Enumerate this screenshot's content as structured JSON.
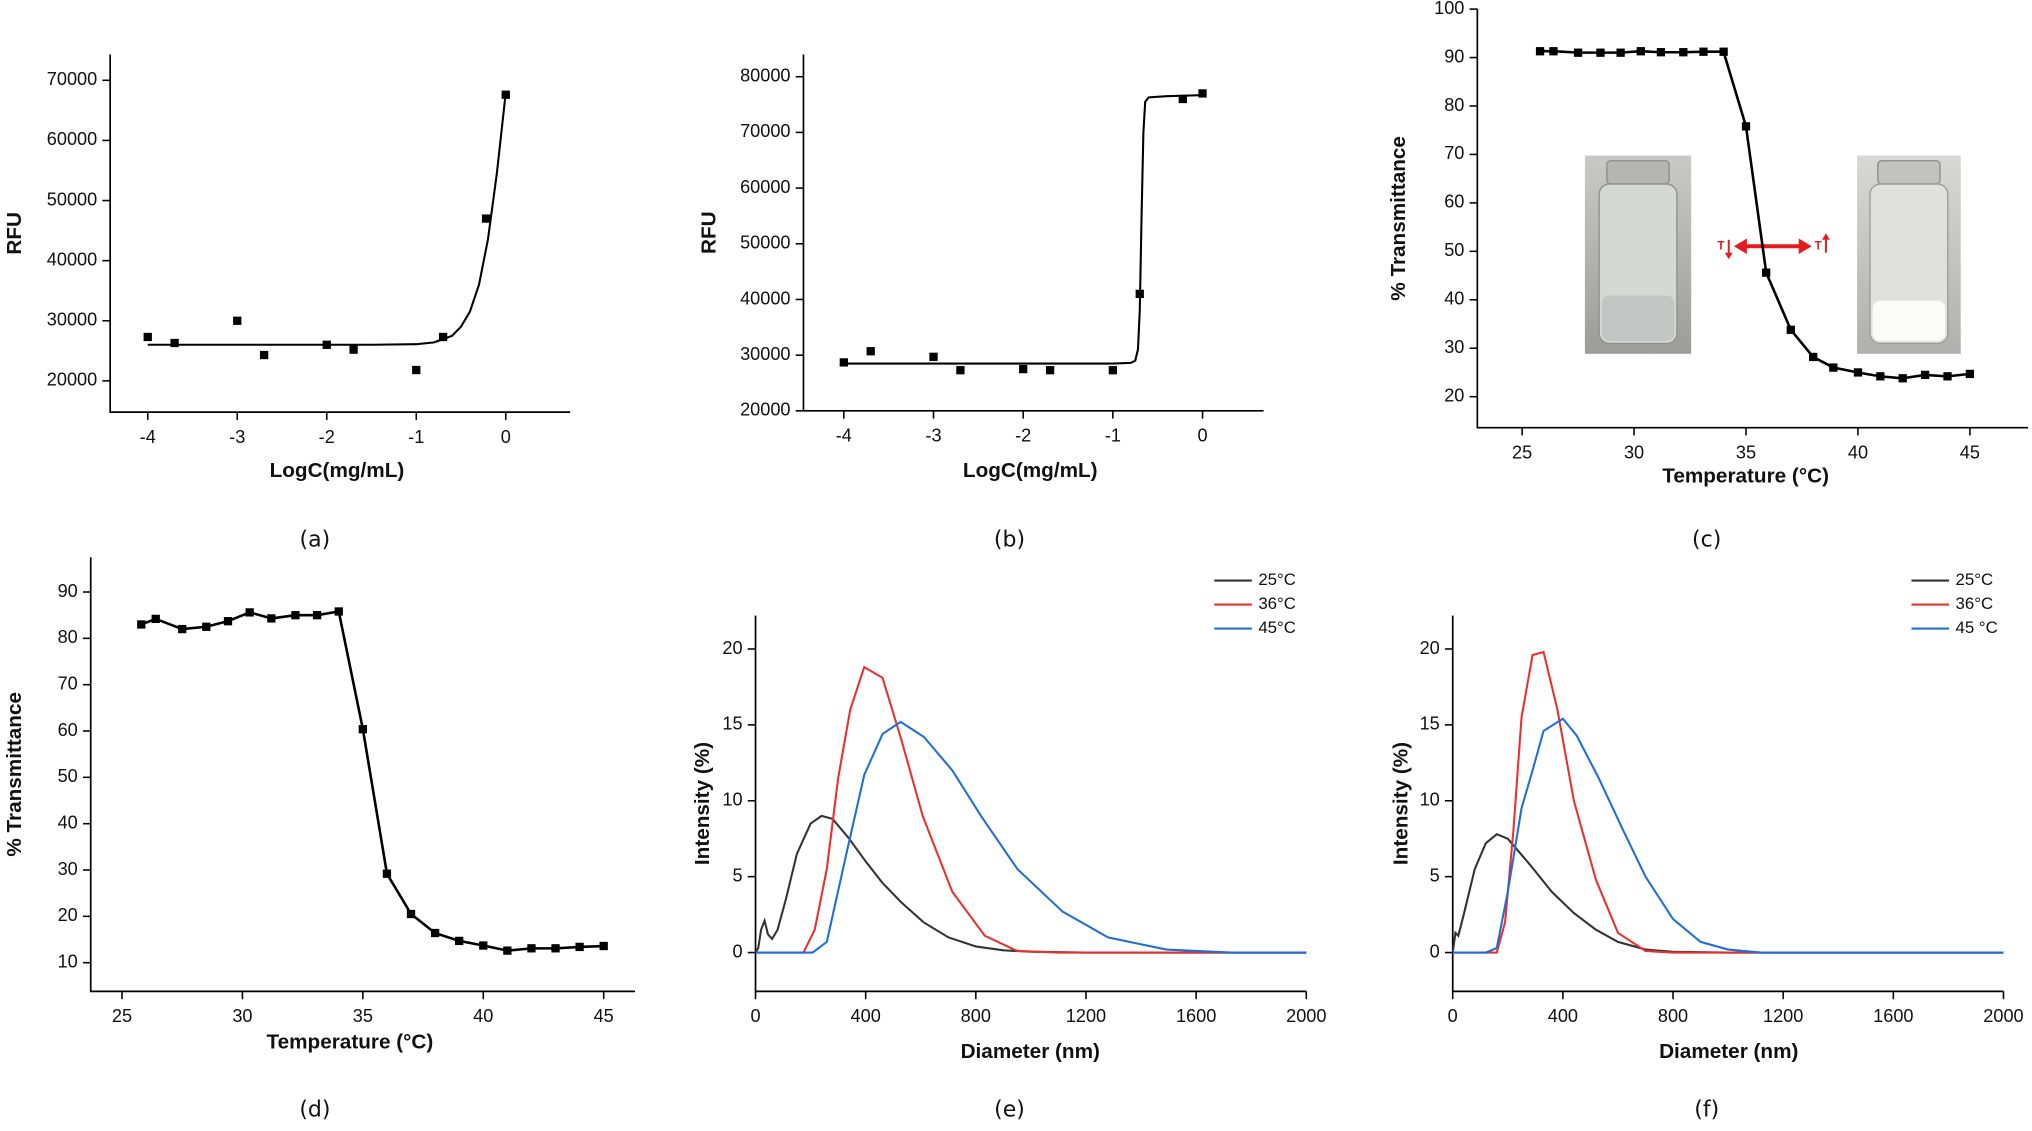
{
  "chart_data": [
    {
      "type": "scatter",
      "caption": "(a)",
      "xlabel": "LogC(mg/mL)",
      "ylabel": "RFU",
      "xlim": [
        -4.42,
        0.72
      ],
      "ylim": [
        14800,
        74300
      ],
      "xticks": [
        -4,
        -3,
        -2,
        -1,
        0
      ],
      "yticks": [
        20000,
        30000,
        40000,
        50000,
        60000,
        70000
      ],
      "series": [
        {
          "color": "#000000",
          "marker": "square",
          "line": false,
          "x": [
            -4,
            -3.7,
            -3,
            -2.7,
            -2,
            -1.7,
            -1,
            -0.7,
            -0.22,
            0
          ],
          "values": [
            27300,
            26300,
            30000,
            24300,
            26000,
            25200,
            21800,
            27300,
            47000,
            67600
          ]
        },
        {
          "color": "#000000",
          "marker": null,
          "line": true,
          "x": [
            -4,
            -3,
            -2,
            -1.5,
            -1,
            -0.8,
            -0.6,
            -0.5,
            -0.4,
            -0.3,
            -0.2,
            -0.1,
            0
          ],
          "values": [
            26000,
            26000,
            26000,
            26000,
            26100,
            26400,
            27500,
            29000,
            31500,
            36000,
            43500,
            54500,
            68000
          ]
        }
      ]
    },
    {
      "type": "scatter",
      "caption": "(b)",
      "xlabel": "LogC(mg/mL)",
      "ylabel": "RFU",
      "xlim": [
        -4.45,
        0.68
      ],
      "ylim": [
        20000,
        84000
      ],
      "xticks": [
        -4,
        -3,
        -2,
        -1,
        0
      ],
      "yticks": [
        20000,
        30000,
        40000,
        50000,
        60000,
        70000,
        80000
      ],
      "series": [
        {
          "color": "#000000",
          "marker": "square",
          "line": false,
          "x": [
            -4,
            -3.7,
            -3,
            -2.7,
            -2,
            -1.7,
            -1,
            -0.7,
            -0.22,
            0
          ],
          "values": [
            28700,
            30700,
            29700,
            27300,
            27500,
            27300,
            27300,
            41000,
            76000,
            77000
          ]
        },
        {
          "color": "#000000",
          "marker": null,
          "line": true,
          "x": [
            -4,
            -2,
            -1,
            -0.8,
            -0.75,
            -0.72,
            -0.7,
            -0.68,
            -0.66,
            -0.64,
            -0.6,
            -0.4,
            0
          ],
          "values": [
            28500,
            28500,
            28500,
            28600,
            29000,
            31000,
            38000,
            55000,
            70000,
            75500,
            76300,
            76500,
            76700
          ]
        }
      ]
    },
    {
      "type": "line",
      "caption": "(c)",
      "xlabel": "Temperature (°C)",
      "ylabel": "% Transmittance",
      "xlim": [
        23,
        47.6
      ],
      "ylim": [
        13.6,
        100
      ],
      "xticks": [
        25,
        30,
        35,
        40,
        45
      ],
      "yticks": [
        20,
        30,
        40,
        50,
        60,
        70,
        80,
        90,
        100
      ],
      "annotations": [
        "T",
        "T"
      ],
      "series": [
        {
          "color": "#000000",
          "marker": "square",
          "line": true,
          "x": [
            25.8,
            26.4,
            27.5,
            28.5,
            29.4,
            30.3,
            31.2,
            32.2,
            33.1,
            34,
            35,
            35.9,
            37,
            38,
            38.9,
            40,
            41,
            42,
            43,
            44,
            45
          ],
          "values": [
            91.3,
            91.3,
            91,
            91,
            91,
            91.3,
            91.1,
            91.1,
            91.2,
            91.2,
            75.8,
            45.6,
            33.8,
            28.2,
            26,
            25,
            24.2,
            23.8,
            24.5,
            24.2,
            24.7
          ]
        }
      ]
    },
    {
      "type": "line",
      "caption": "(d)",
      "xlabel": "Temperature (°C)",
      "ylabel": "% Transmittance",
      "xlim": [
        23.7,
        46.3
      ],
      "ylim": [
        3.8,
        97.5
      ],
      "xticks": [
        25,
        30,
        35,
        40,
        45
      ],
      "yticks": [
        10,
        20,
        30,
        40,
        50,
        60,
        70,
        80,
        90
      ],
      "series": [
        {
          "color": "#000000",
          "marker": "square",
          "line": true,
          "x": [
            25.8,
            26.4,
            27.5,
            28.5,
            29.4,
            30.3,
            31.2,
            32.2,
            33.1,
            34,
            35,
            36,
            37,
            38,
            39,
            40,
            41,
            42,
            43,
            44,
            45
          ],
          "values": [
            83,
            84.2,
            82,
            82.5,
            83.7,
            85.6,
            84.3,
            85,
            85,
            85.8,
            60.4,
            29.2,
            20.5,
            16.4,
            14.7,
            13.7,
            12.6,
            13.1,
            13.1,
            13.4,
            13.6
          ]
        }
      ]
    },
    {
      "type": "line",
      "caption": "(e)",
      "xlabel": "Diameter (nm)",
      "ylabel": "Intensity (%)",
      "xlim": [
        0,
        2000
      ],
      "ylim": [
        -2.56,
        22.2
      ],
      "legend": "upper right",
      "xticks": [
        0,
        400,
        800,
        1200,
        1600,
        2000
      ],
      "yticks": [
        0,
        5,
        10,
        15,
        20
      ],
      "series": [
        {
          "name": "25°C",
          "color": "#333333",
          "marker": null,
          "line": true,
          "x": [
            0,
            10,
            20,
            33,
            45,
            60,
            80,
            110,
            150,
            200,
            240,
            280,
            340,
            400,
            460,
            530,
            610,
            700,
            800,
            900,
            1000,
            1200,
            2000
          ],
          "values": [
            0,
            0.3,
            1.5,
            2.1,
            1.2,
            0.9,
            1.5,
            3.5,
            6.5,
            8.5,
            9,
            8.8,
            7.5,
            6,
            4.6,
            3.3,
            2,
            1,
            0.4,
            0.15,
            0.05,
            0,
            0
          ]
        },
        {
          "name": "36°C",
          "color": "#e8312f",
          "marker": null,
          "line": true,
          "x": [
            0,
            174,
            215,
            259,
            300,
            344,
            395,
            461,
            530,
            607,
            715,
            833,
            950,
            1100,
            2000
          ],
          "values": [
            0,
            0,
            1.5,
            5.5,
            11.5,
            16,
            18.8,
            18.1,
            14,
            9,
            4,
            1.1,
            0.1,
            0,
            0
          ]
        },
        {
          "name": "45°C",
          "color": "#1f6fd6",
          "marker": null,
          "line": true,
          "x": [
            0,
            207,
            259,
            330,
            395,
            461,
            527,
            612,
            715,
            819,
            951,
            1115,
            1280,
            1492,
            1727,
            2000
          ],
          "values": [
            0,
            0,
            0.7,
            6.5,
            11.7,
            14.4,
            15.2,
            14.2,
            12,
            9,
            5.5,
            2.7,
            1,
            0.2,
            0,
            0
          ]
        }
      ]
    },
    {
      "type": "line",
      "caption": "(f)",
      "xlabel": "Diameter (nm)",
      "ylabel": "Intensity (%)",
      "xlim": [
        0,
        2000
      ],
      "ylim": [
        -2.56,
        22.2
      ],
      "legend": "upper right",
      "xticks": [
        0,
        400,
        800,
        1200,
        1600,
        2000
      ],
      "yticks": [
        0,
        5,
        10,
        15,
        20
      ],
      "series": [
        {
          "name": "25°C",
          "color": "#333333",
          "marker": null,
          "line": true,
          "x": [
            0,
            10,
            20,
            40,
            80,
            120,
            160,
            200,
            280,
            360,
            440,
            520,
            600,
            700,
            800,
            1000,
            2000
          ],
          "values": [
            0,
            1.3,
            1.1,
            2.5,
            5.5,
            7.2,
            7.8,
            7.5,
            5.8,
            4,
            2.6,
            1.5,
            0.7,
            0.2,
            0.05,
            0,
            0
          ]
        },
        {
          "name": "36°C",
          "color": "#e8312f",
          "marker": null,
          "line": true,
          "x": [
            0,
            160,
            190,
            220,
            250,
            290,
            330,
            380,
            440,
            520,
            600,
            700,
            800,
            2000
          ],
          "values": [
            0,
            0,
            2,
            8,
            15.5,
            19.6,
            19.8,
            16,
            10,
            4.8,
            1.3,
            0.1,
            0,
            0
          ]
        },
        {
          "name": "45 °C",
          "color": "#1f6fd6",
          "marker": null,
          "line": true,
          "x": [
            0,
            120,
            160,
            200,
            250,
            290,
            330,
            400,
            450,
            530,
            620,
            700,
            800,
            900,
            1000,
            1120,
            2000
          ],
          "values": [
            0,
            0,
            0.3,
            4,
            9.5,
            12,
            14.6,
            15.4,
            14.3,
            11.5,
            8,
            5,
            2.2,
            0.7,
            0.2,
            0,
            0
          ]
        }
      ]
    }
  ]
}
